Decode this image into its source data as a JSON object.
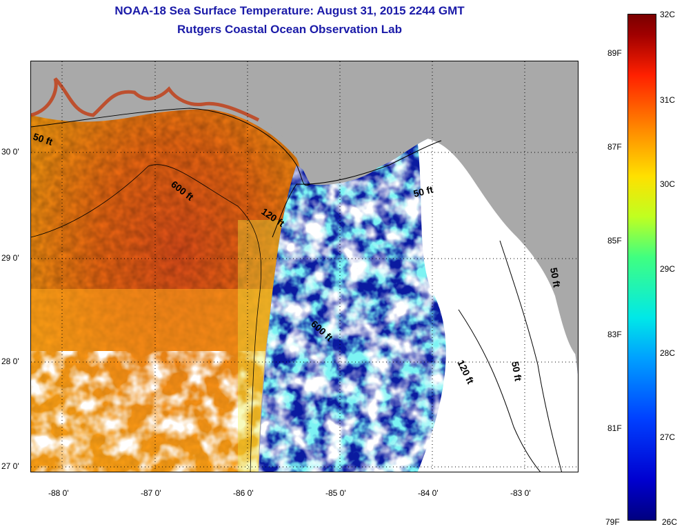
{
  "title": {
    "line1": "NOAA-18 Sea Surface Temperature:  August 31, 2015 2244 GMT",
    "line2": "Rutgers Coastal Ocean Observation Lab"
  },
  "map": {
    "lon_range": [
      -88.33,
      -82.42
    ],
    "lat_range": [
      26.96,
      30.88
    ],
    "longitude_ticks": [
      "-88 0'",
      "-87 0'",
      "-86 0'",
      "-85 0'",
      "-84 0'",
      "-83 0'"
    ],
    "latitude_ticks": [
      "30 0'",
      "29 0'",
      "28 0'",
      "27 0'"
    ],
    "depth_contours": [
      "50 ft",
      "600 ft",
      "120 ft",
      "50 ft",
      "600 ft",
      "120 ft",
      "50 ft",
      "50 ft"
    ],
    "colors": {
      "land": "#a9a9a9",
      "cloud_mask": "#ffffff",
      "warm_water": "#ff7a10",
      "cool_water": "#0a1aa0"
    }
  },
  "colorbar": {
    "celsius": [
      "32C",
      "31C",
      "30C",
      "29C",
      "28C",
      "27C",
      "26C"
    ],
    "fahrenheit": [
      "89F",
      "87F",
      "85F",
      "83F",
      "81F",
      "79F"
    ]
  }
}
